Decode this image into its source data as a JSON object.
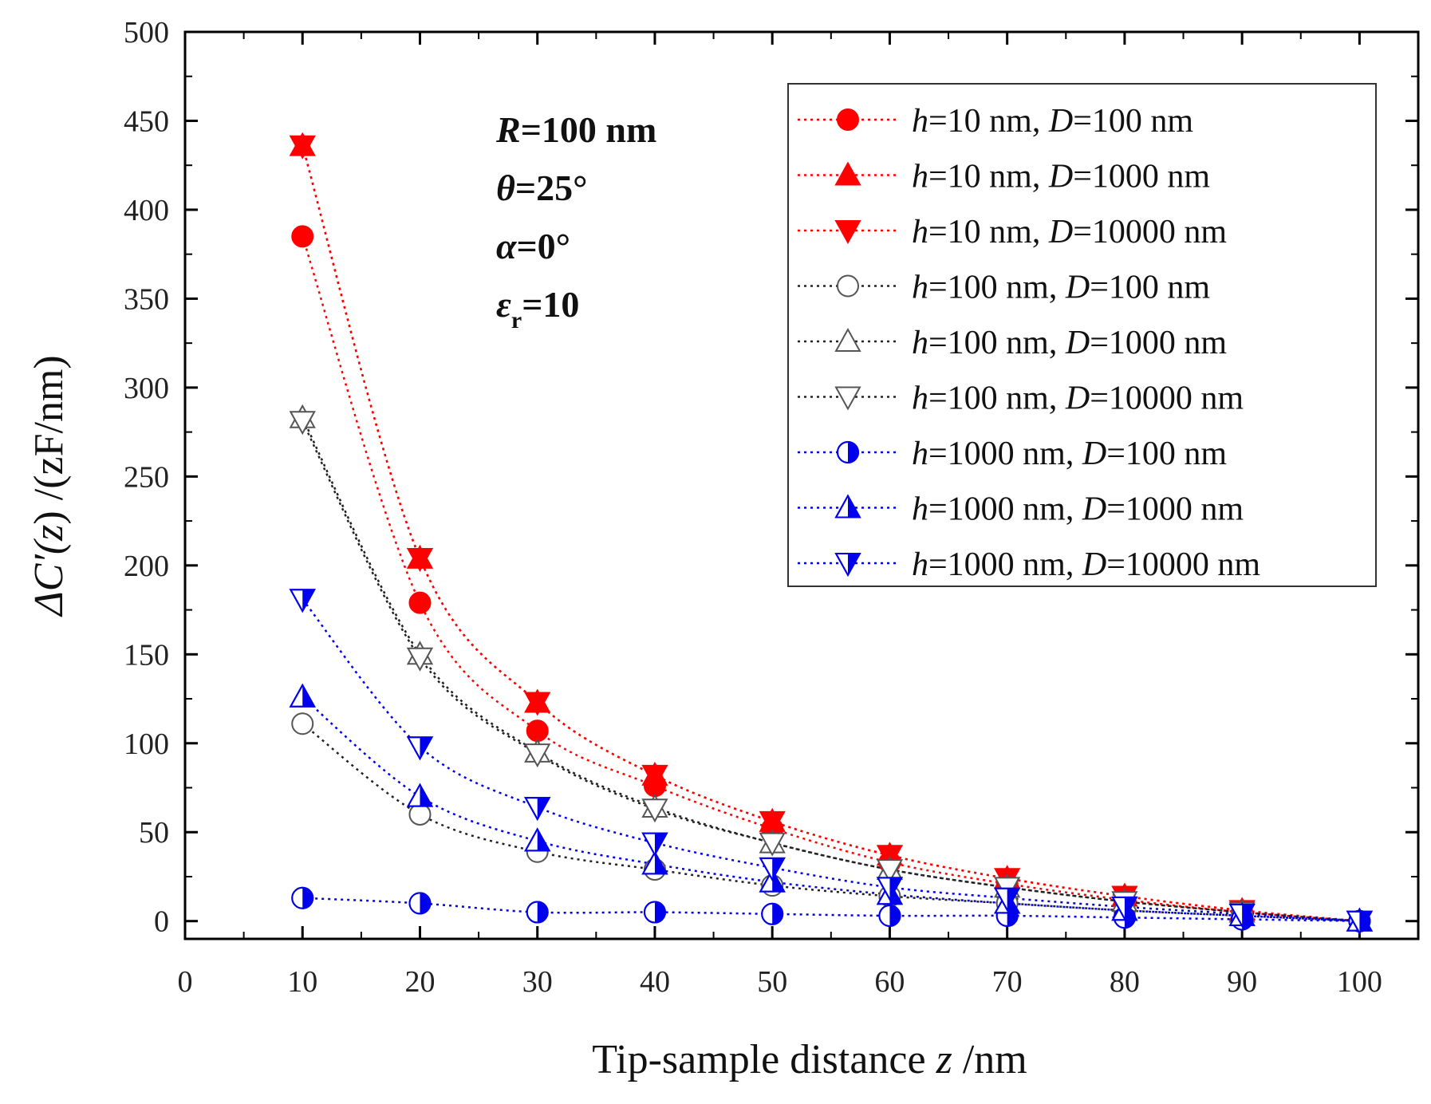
{
  "chart_data": {
    "type": "scatter",
    "xlabel": {
      "prefix": "Tip-sample distance ",
      "var": "z",
      "suffix": " /nm"
    },
    "ylabel": {
      "pre": "ΔC′(",
      "var": "z",
      "post": ") /(zF/nm)"
    },
    "xlim": [
      0,
      105
    ],
    "ylim": [
      -10,
      500
    ],
    "xticks": [
      0,
      10,
      20,
      30,
      40,
      50,
      60,
      70,
      80,
      90,
      100
    ],
    "yticks": [
      0,
      50,
      100,
      150,
      200,
      250,
      300,
      350,
      400,
      450,
      500
    ],
    "legend_position": "top-right",
    "params": [
      {
        "var": "R",
        "sub": "",
        "value": "=100 nm"
      },
      {
        "var": "θ",
        "sub": "",
        "value": "=25°"
      },
      {
        "var": "α",
        "sub": "",
        "value": "=0°"
      },
      {
        "var": "ε",
        "sub": "r",
        "value": "=10"
      }
    ],
    "colors": {
      "red": "#ff0000",
      "black": "#222222",
      "gray": "#555555",
      "blue": "#0000ee"
    },
    "x": [
      10,
      20,
      30,
      40,
      50,
      60,
      70,
      80,
      90,
      100
    ],
    "series": [
      {
        "name": "h=10 nm, D=100 nm",
        "h": "10",
        "D": "100",
        "marker": "circle",
        "fill": "full",
        "color": "#ff0000",
        "line": "#ff0000",
        "values": [
          385,
          179,
          107,
          76,
          52,
          33,
          21,
          12,
          5,
          0
        ]
      },
      {
        "name": "h=10 nm, D=1000 nm",
        "h": "10",
        "D": "1000",
        "marker": "triangle-up",
        "fill": "full",
        "color": "#ff0000",
        "line": "#ff0000",
        "values": [
          436,
          204,
          123,
          82,
          56,
          37,
          24,
          14,
          6,
          0
        ]
      },
      {
        "name": "h=10 nm, D=10000 nm",
        "h": "10",
        "D": "10000",
        "marker": "triangle-down",
        "fill": "full",
        "color": "#ff0000",
        "line": "#ff0000",
        "values": [
          436,
          204,
          123,
          82,
          56,
          37,
          24,
          14,
          6,
          0
        ]
      },
      {
        "name": "h=100 nm, D=100 nm",
        "h": "100",
        "D": "100",
        "marker": "circle",
        "fill": "none",
        "color": "#555555",
        "line": "#222222",
        "values": [
          111,
          60,
          39,
          29,
          20,
          14,
          10,
          6,
          3,
          0
        ]
      },
      {
        "name": "h=100 nm, D=1000 nm",
        "h": "100",
        "D": "1000",
        "marker": "triangle-up",
        "fill": "none",
        "color": "#555555",
        "line": "#222222",
        "values": [
          283,
          150,
          95,
          64,
          44,
          29,
          19,
          11,
          5,
          0
        ]
      },
      {
        "name": "h=100 nm, D=10000 nm",
        "h": "100",
        "D": "10000",
        "marker": "triangle-down",
        "fill": "none",
        "color": "#555555",
        "line": "#222222",
        "values": [
          281,
          148,
          94,
          63,
          44,
          29,
          19,
          11,
          5,
          0
        ]
      },
      {
        "name": "h=1000 nm, D=100 nm",
        "h": "1000",
        "D": "100",
        "marker": "circle",
        "fill": "half",
        "color": "#0000ee",
        "line": "#0000ee",
        "values": [
          13,
          10,
          5,
          5,
          4,
          3,
          3,
          2,
          1,
          0
        ]
      },
      {
        "name": "h=1000 nm, D=1000 nm",
        "h": "1000",
        "D": "1000",
        "marker": "triangle-up",
        "fill": "half",
        "color": "#0000ee",
        "line": "#0000ee",
        "values": [
          126,
          70,
          45,
          32,
          22,
          15,
          10,
          6,
          3,
          0
        ]
      },
      {
        "name": "h=1000 nm, D=10000 nm",
        "h": "1000",
        "D": "10000",
        "marker": "triangle-down",
        "fill": "half",
        "color": "#0000ee",
        "line": "#0000ee",
        "values": [
          181,
          98,
          64,
          44,
          30,
          19,
          13,
          8,
          4,
          0
        ]
      }
    ]
  }
}
